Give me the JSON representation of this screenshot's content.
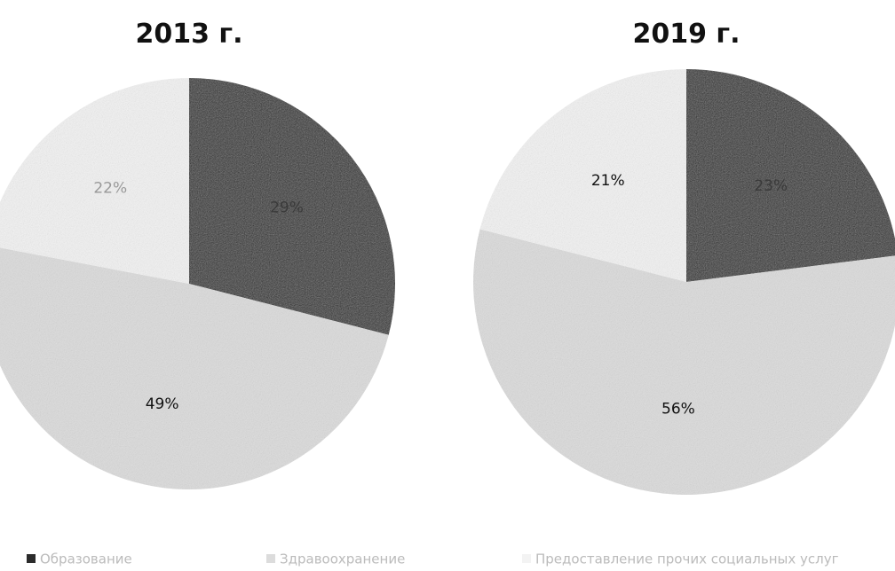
{
  "legend": {
    "names": [
      "Образование",
      "Здравоохранение",
      "Предоставление прочих социальных услуг"
    ],
    "colors": [
      "#2b2b2b",
      "#dcdcdc",
      "#f3f3f3"
    ]
  },
  "chart_data": [
    {
      "type": "pie",
      "title": "2013 г.",
      "values": [
        29,
        49,
        22
      ],
      "value_labels": [
        "29%",
        "49%",
        "22%"
      ]
    },
    {
      "type": "pie",
      "title": "2019 г.",
      "values": [
        23,
        56,
        21
      ],
      "value_labels": [
        "23%",
        "56%",
        "21%"
      ]
    }
  ]
}
